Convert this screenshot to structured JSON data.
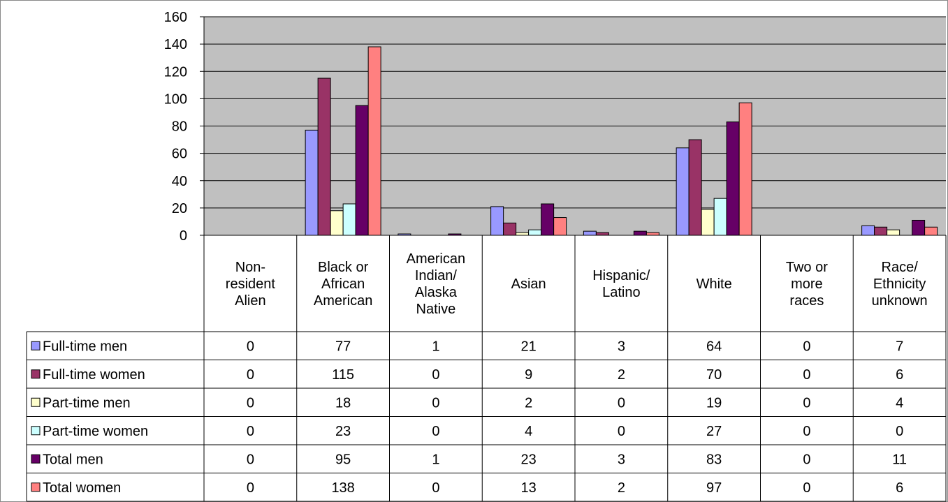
{
  "chart_data": {
    "type": "bar",
    "categories": [
      [
        "Non-",
        "resident",
        "Alien"
      ],
      [
        "Black or",
        "African",
        "American"
      ],
      [
        "American",
        "Indian/",
        "Alaska",
        "Native"
      ],
      [
        "Asian"
      ],
      [
        "Hispanic/",
        "Latino"
      ],
      [
        "White"
      ],
      [
        "Two or",
        "more",
        "races"
      ],
      [
        "Race/",
        "Ethnicity",
        "unknown"
      ]
    ],
    "series": [
      {
        "name": "Full-time men",
        "color": "#9999FF",
        "values": [
          0,
          77,
          1,
          21,
          3,
          64,
          0,
          7
        ]
      },
      {
        "name": "Full-time women",
        "color": "#993366",
        "values": [
          0,
          115,
          0,
          9,
          2,
          70,
          0,
          6
        ]
      },
      {
        "name": "Part-time men",
        "color": "#FFFFCC",
        "values": [
          0,
          18,
          0,
          2,
          0,
          19,
          0,
          4
        ]
      },
      {
        "name": "Part-time women",
        "color": "#CCFFFF",
        "values": [
          0,
          23,
          0,
          4,
          0,
          27,
          0,
          0
        ]
      },
      {
        "name": "Total men",
        "color": "#660066",
        "values": [
          0,
          95,
          1,
          23,
          3,
          83,
          0,
          11
        ]
      },
      {
        "name": "Total women",
        "color": "#FF8080",
        "values": [
          0,
          138,
          0,
          13,
          2,
          97,
          0,
          6
        ]
      }
    ],
    "ylim": [
      0,
      160
    ],
    "yticks": [
      "0",
      "20",
      "40",
      "60",
      "80",
      "100",
      "120",
      "140",
      "160"
    ],
    "grid": true,
    "plot_background": "#C0C0C0",
    "legend": "data-table"
  }
}
